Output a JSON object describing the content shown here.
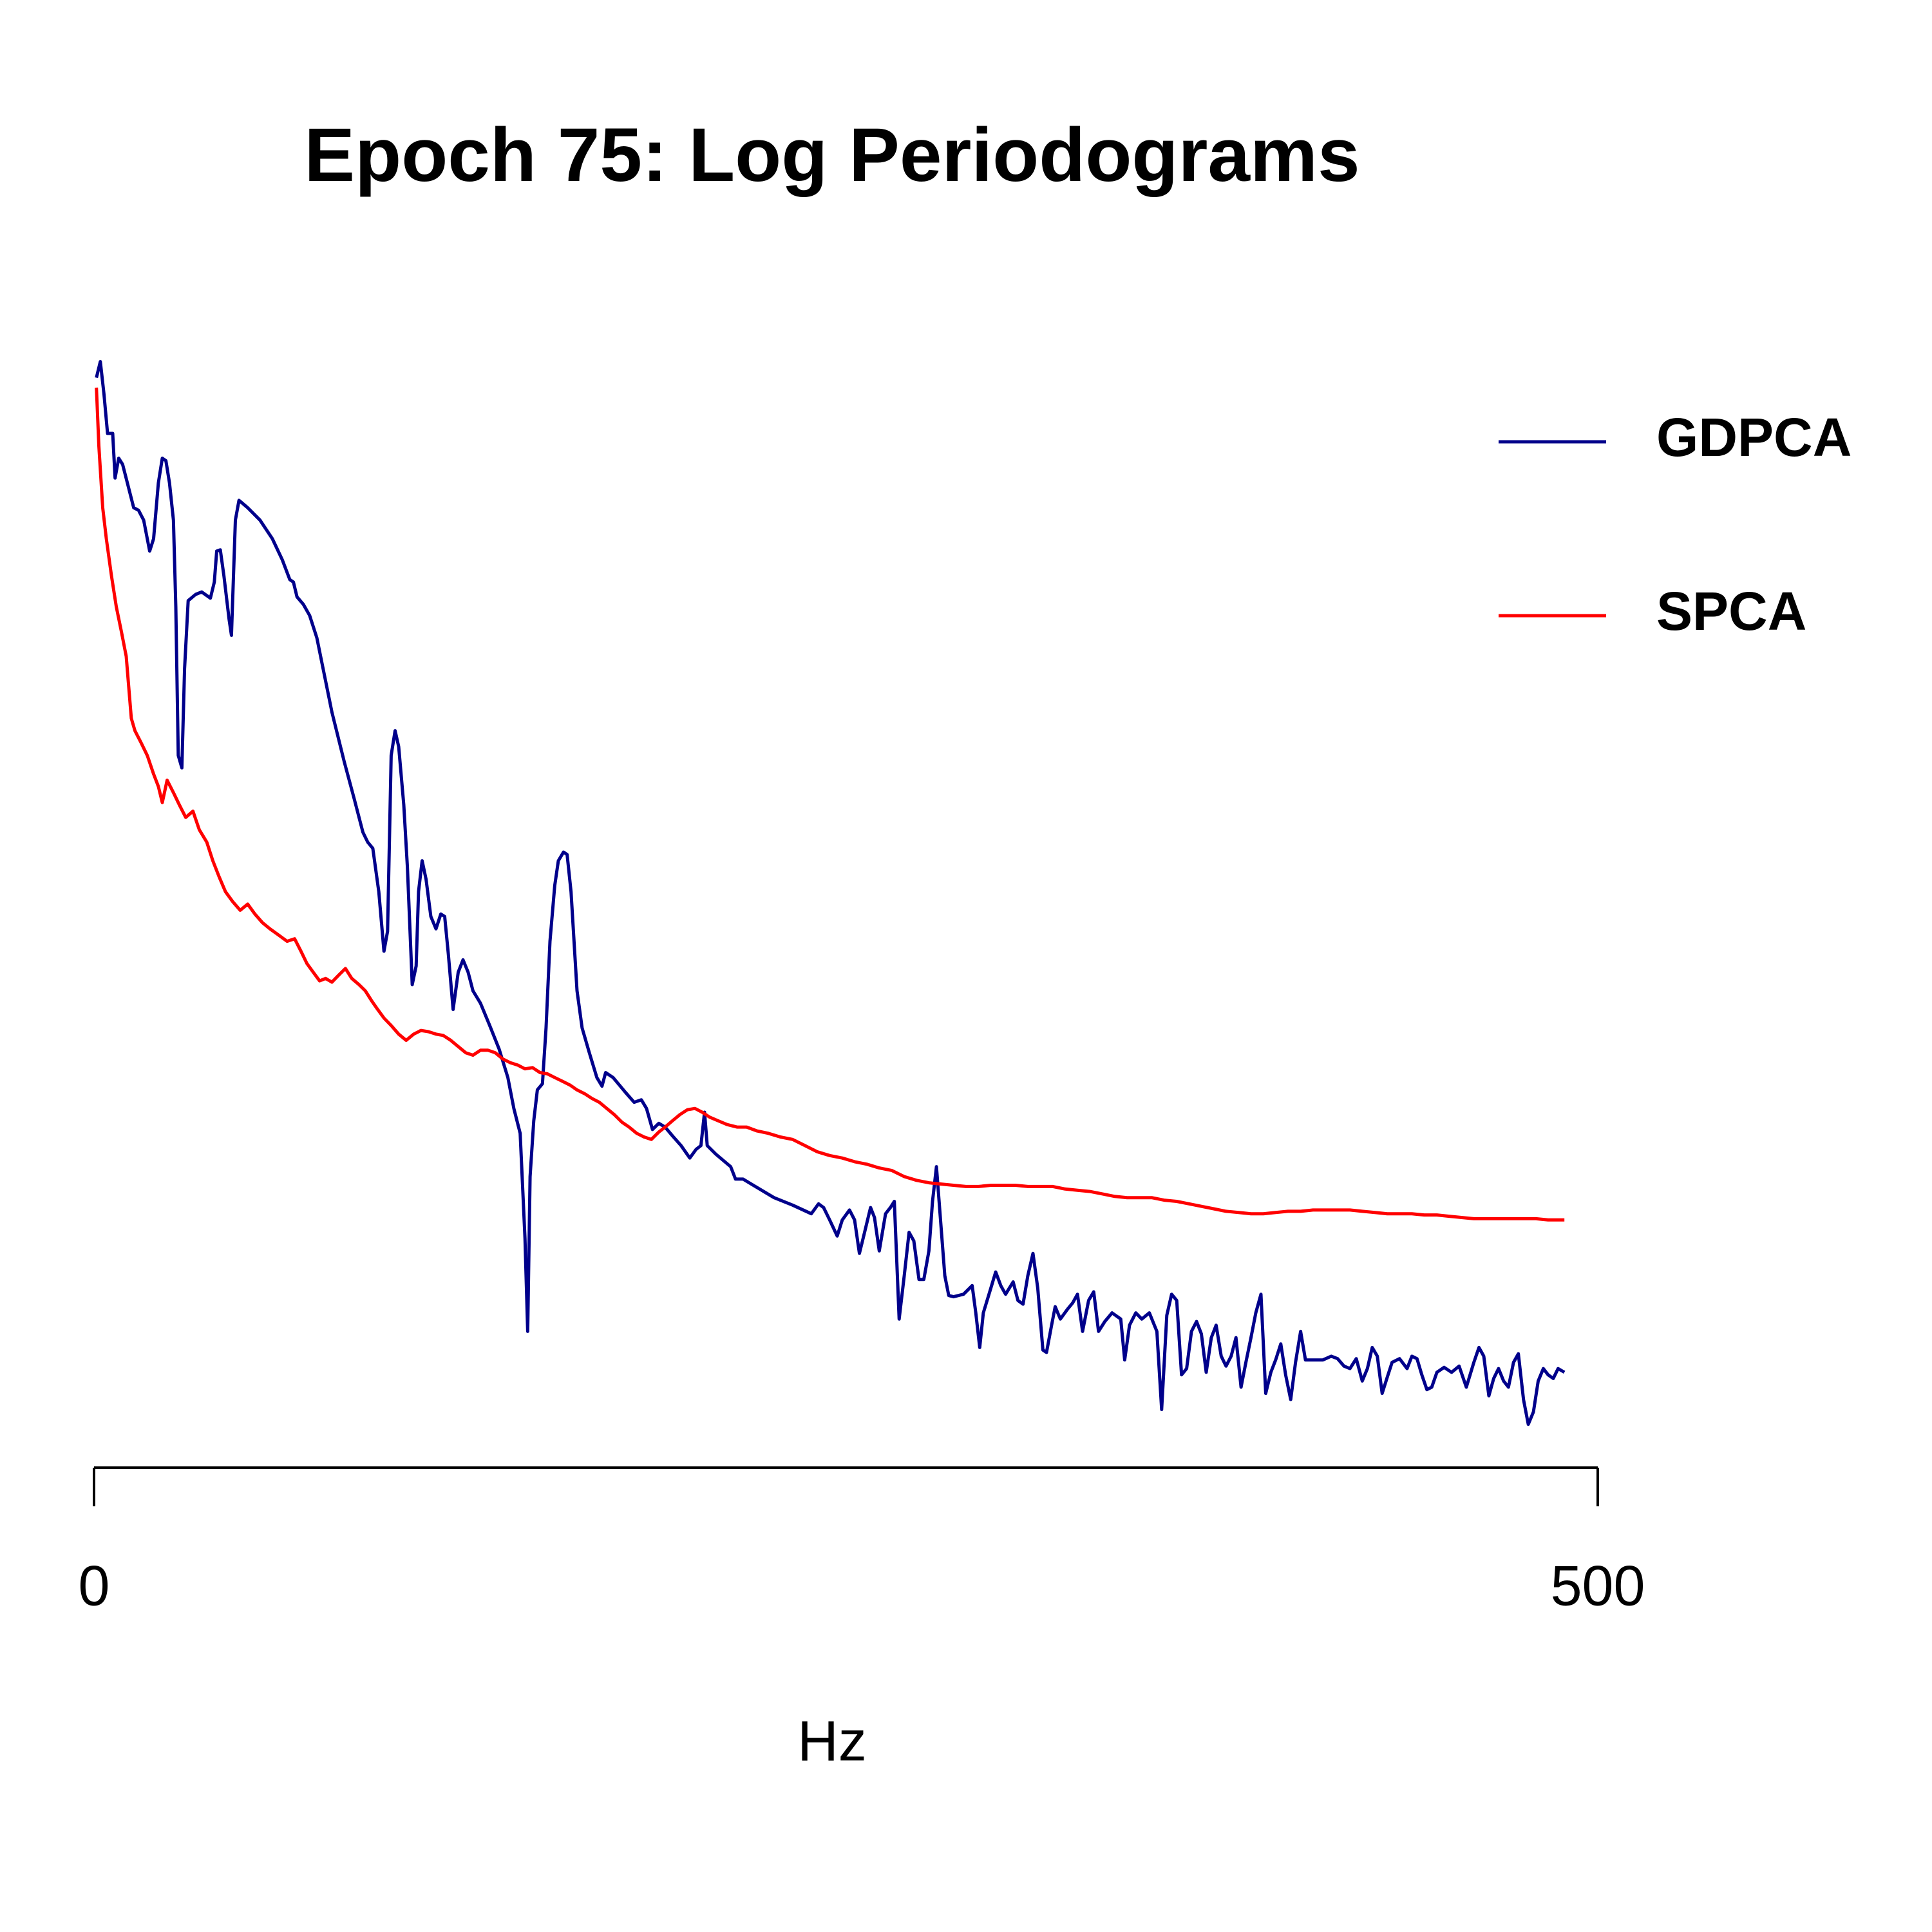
{
  "chart_data": {
    "type": "line",
    "title": "Epoch 75: Log Periodograms",
    "x_label": "Hz",
    "xlim": [
      0,
      500
    ],
    "xticks": [
      0,
      500
    ],
    "ylim": [
      0,
      900
    ],
    "legend": "top right",
    "series": [
      {
        "name": "GDPCA",
        "color": "#00008b",
        "x": [
          0.8,
          2.1,
          3.3,
          4.5,
          6.2,
          7.0,
          8.2,
          9.5,
          11.1,
          13.2,
          14.8,
          16.5,
          18.5,
          19.8,
          21.4,
          22.7,
          23.9,
          25.1,
          26.4,
          27.2,
          28.0,
          29.2,
          30.1,
          31.3,
          33.8,
          35.8,
          38.7,
          40.0,
          40.8,
          42.0,
          43.2,
          44.9,
          45.7,
          47.0,
          48.2,
          51.1,
          55.2,
          59.3,
          62.6,
          65.1,
          66.3,
          67.5,
          69.6,
          71.7,
          74.1,
          76.6,
          79.1,
          83.2,
          86.5,
          89.4,
          91.0,
          92.7,
          94.7,
          96.4,
          97.6,
          98.8,
          100.1,
          101.3,
          103.0,
          104.2,
          105.8,
          107.1,
          107.9,
          109.1,
          110.4,
          112.0,
          113.7,
          115.3,
          116.6,
          117.8,
          119.4,
          121.1,
          122.7,
          124.4,
          126.0,
          128.5,
          131.4,
          134.7,
          137.6,
          139.6,
          141.7,
          143.3,
          144.2,
          145.0,
          146.2,
          147.4,
          149.1,
          150.3,
          151.6,
          153.2,
          154.4,
          156.1,
          157.3,
          158.6,
          160.6,
          162.3,
          164.7,
          167.2,
          168.9,
          170.1,
          172.6,
          176.7,
          179.6,
          182.0,
          183.7,
          185.7,
          187.8,
          189.9,
          192.3,
          195.2,
          198.1,
          200.2,
          201.8,
          203.0,
          203.9,
          206.8,
          211.7,
          213.3,
          215.8,
          219.9,
          226.1,
          232.3,
          238.5,
          240.9,
          242.6,
          244.6,
          247.1,
          248.8,
          251.2,
          252.9,
          254.5,
          256.2,
          258.2,
          259.5,
          261.1,
          263.2,
          264.8,
          266.1,
          267.7,
          269.4,
          271.0,
          272.6,
          274.3,
          275.9,
          277.6,
          278.8,
          280.1,
          281.3,
          282.9,
          284.2,
          285.8,
          289.1,
          292.0,
          293.2,
          294.5,
          295.7,
          298.2,
          299.8,
          301.5,
          303.1,
          305.6,
          307.2,
          308.9,
          310.5,
          312.2,
          313.8,
          315.5,
          316.7,
          318.4,
          319.6,
          321.3,
          323.7,
          325.4,
          327.0,
          328.7,
          330.7,
          332.4,
          334.0,
          336.1,
          338.5,
          341.4,
          342.7,
          344.3,
          346.4,
          348.4,
          350.9,
          353.4,
          355.0,
          356.7,
          358.3,
          360.0,
          361.6,
          363.3,
          364.9,
          366.6,
          368.2,
          369.8,
          371.5,
          373.1,
          374.8,
          376.4,
          378.1,
          379.7,
          381.4,
          383.0,
          384.7,
          386.3,
          388.0,
          389.6,
          391.3,
          392.9,
          394.6,
          396.2,
          397.9,
          399.5,
          401.2,
          402.8,
          405.3,
          408.6,
          411.4,
          413.5,
          415.6,
          417.6,
          419.7,
          421.7,
          423.4,
          425.0,
          426.7,
          428.3,
          430.0,
          431.6,
          434.1,
          436.6,
          438.2,
          439.9,
          441.5,
          443.2,
          444.8,
          446.5,
          448.9,
          451.4,
          453.9,
          456.3,
          458.8,
          460.5,
          462.1,
          463.8,
          465.4,
          467.0,
          468.7,
          470.3,
          472.0,
          473.6,
          475.3,
          476.9,
          478.6,
          480.2,
          481.9,
          483.5,
          485.2,
          486.8,
          488.9
        ],
        "values": [
          880,
          893,
          867,
          835,
          835,
          799,
          815,
          810,
          795,
          775,
          773,
          765,
          740,
          750,
          795,
          815,
          813,
          795,
          765,
          695,
          575,
          565,
          645,
          700,
          705,
          707,
          702,
          715,
          740,
          741,
          720,
          685,
          672,
          765,
          781,
          775,
          765,
          750,
          733,
          717,
          715,
          703,
          697,
          688,
          670,
          640,
          610,
          570,
          540,
          513,
          505,
          500,
          465,
          417,
          433,
          575,
          595,
          582,
          535,
          485,
          390,
          405,
          465,
          490,
          475,
          445,
          435,
          447,
          445,
          415,
          370,
          400,
          410,
          400,
          385,
          375,
          358,
          338,
          315,
          290,
          270,
          185,
          110,
          235,
          280,
          305,
          310,
          355,
          425,
          470,
          490,
          497,
          495,
          465,
          385,
          355,
          335,
          315,
          308,
          319,
          315,
          303,
          295,
          297,
          290,
          273,
          278,
          275,
          268,
          260,
          250,
          257,
          260,
          287,
          260,
          253,
          243,
          233,
          233,
          227,
          218,
          212,
          205,
          213,
          210,
          200,
          187,
          200,
          208,
          200,
          173,
          190,
          210,
          202,
          175,
          205,
          210,
          215,
          120,
          155,
          190,
          183,
          152,
          152,
          175,
          215,
          243,
          205,
          155,
          139,
          138,
          140,
          147,
          125,
          97,
          125,
          145,
          158,
          147,
          140,
          150,
          135,
          132,
          155,
          173,
          145,
          95,
          93,
          115,
          130,
          120,
          128,
          133,
          140,
          110,
          135,
          142,
          110,
          118,
          125,
          120,
          87,
          115,
          125,
          120,
          125,
          110,
          47,
          123,
          140,
          135,
          75,
          80,
          110,
          118,
          108,
          77,
          105,
          115,
          90,
          82,
          90,
          105,
          65,
          85,
          105,
          125,
          140,
          60,
          77,
          87,
          100,
          75,
          55,
          85,
          110,
          87,
          87,
          87,
          90,
          88,
          82,
          80,
          88,
          70,
          80,
          97,
          90,
          60,
          73,
          85,
          88,
          80,
          90,
          88,
          75,
          63,
          65,
          77,
          81,
          77,
          82,
          65,
          85,
          97,
          90,
          58,
          72,
          80,
          70,
          65,
          85,
          92,
          55,
          35,
          45,
          70,
          80,
          75,
          72,
          80,
          77
        ]
      },
      {
        "name": "SPCA",
        "color": "#ff0000",
        "x": [
          0.8,
          1.6,
          2.9,
          4.1,
          5.8,
          7.4,
          9.1,
          10.7,
          12.4,
          13.6,
          15.7,
          17.7,
          19.8,
          21.4,
          22.7,
          24.3,
          26.4,
          28.4,
          30.5,
          32.9,
          35.0,
          37.5,
          39.5,
          41.6,
          43.7,
          46.1,
          48.6,
          51.1,
          53.5,
          56.0,
          58.5,
          61.4,
          64.2,
          66.7,
          68.8,
          70.8,
          72.9,
          75.0,
          77.0,
          79.1,
          81.5,
          83.6,
          85.7,
          88.1,
          90.2,
          92.3,
          94.3,
          96.4,
          98.8,
          101.3,
          103.8,
          106.3,
          108.7,
          111.2,
          113.7,
          116.1,
          118.6,
          121.1,
          123.6,
          126.0,
          128.5,
          131.0,
          133.4,
          135.9,
          138.4,
          140.9,
          143.3,
          145.8,
          148.3,
          150.7,
          153.2,
          155.7,
          158.2,
          160.6,
          163.1,
          165.6,
          168.0,
          170.5,
          173.0,
          175.5,
          177.9,
          180.4,
          182.9,
          185.3,
          187.8,
          189.9,
          192.3,
          194.8,
          197.3,
          199.8,
          202.2,
          204.7,
          207.6,
          210.5,
          213.8,
          217.0,
          220.3,
          224.1,
          228.2,
          232.3,
          236.4,
          240.5,
          244.6,
          248.8,
          252.9,
          257.0,
          261.1,
          265.2,
          269.4,
          273.5,
          277.6,
          281.7,
          285.8,
          289.9,
          294.1,
          298.2,
          302.3,
          306.4,
          310.5,
          314.7,
          318.8,
          322.9,
          327.0,
          331.1,
          335.3,
          339.4,
          343.5,
          347.6,
          351.7,
          355.8,
          360.0,
          364.1,
          368.2,
          372.3,
          376.4,
          380.6,
          384.7,
          388.8,
          392.9,
          397.0,
          401.2,
          405.3,
          409.4,
          413.5,
          417.6,
          421.7,
          425.9,
          430.0,
          434.1,
          438.2,
          442.3,
          446.5,
          450.6,
          454.7,
          458.8,
          462.9,
          467.0,
          471.2,
          475.3,
          479.4,
          483.5,
          488.9
        ],
        "values": [
          872,
          825,
          775,
          750,
          720,
          695,
          675,
          655,
          605,
          595,
          585,
          575,
          560,
          550,
          537,
          555,
          545,
          535,
          525,
          530,
          515,
          505,
          490,
          477,
          465,
          457,
          450,
          455,
          447,
          440,
          435,
          430,
          425,
          427,
          417,
          407,
          400,
          393,
          395,
          392,
          398,
          403,
          395,
          390,
          385,
          377,
          370,
          363,
          357,
          350,
          345,
          350,
          353,
          352,
          350,
          349,
          345,
          340,
          335,
          333,
          337,
          337,
          335,
          330,
          327,
          325,
          322,
          323,
          319,
          318,
          315,
          312,
          309,
          305,
          302,
          298,
          295,
          290,
          285,
          279,
          275,
          270,
          267,
          265,
          271,
          275,
          280,
          285,
          289,
          290,
          287,
          283,
          280,
          277,
          275,
          275,
          272,
          270,
          267,
          265,
          260,
          255,
          252,
          250,
          247,
          245,
          242,
          240,
          235,
          232,
          230,
          229,
          228,
          227,
          227,
          228,
          228,
          228,
          227,
          227,
          227,
          225,
          224,
          223,
          221,
          219,
          218,
          218,
          218,
          216,
          215,
          213,
          211,
          209,
          207,
          206,
          205,
          205,
          206,
          207,
          207,
          208,
          208,
          208,
          208,
          207,
          206,
          205,
          205,
          205,
          204,
          204,
          203,
          202,
          201,
          201,
          201,
          201,
          201,
          201,
          200,
          200
        ]
      }
    ]
  }
}
